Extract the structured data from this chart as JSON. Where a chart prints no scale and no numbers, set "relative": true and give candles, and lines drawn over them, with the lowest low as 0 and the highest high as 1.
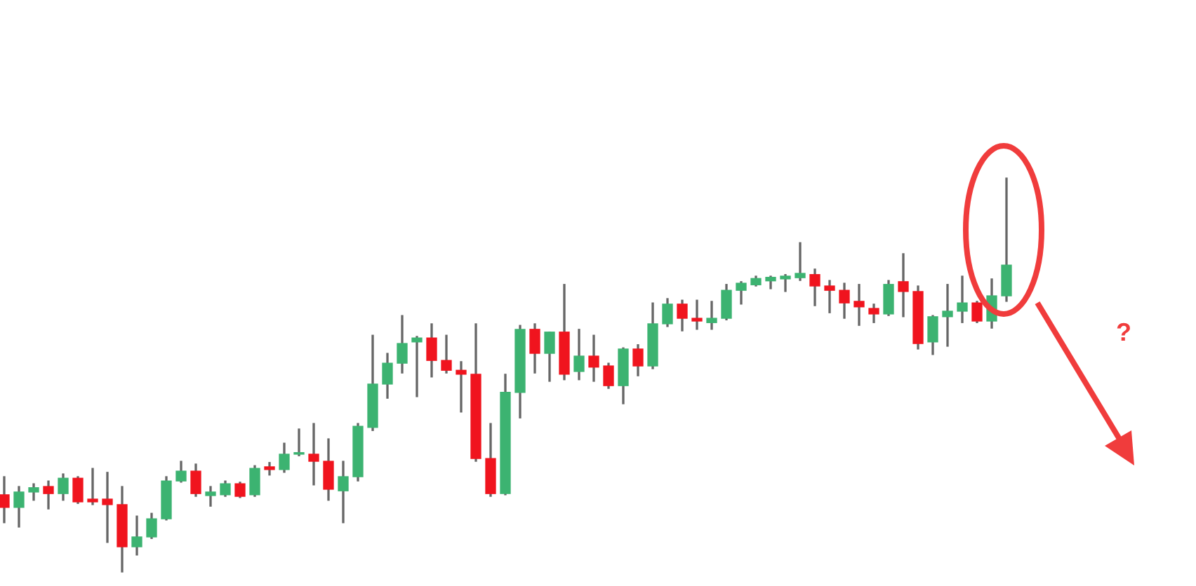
{
  "chart_data": {
    "type": "candlestick",
    "relative": true,
    "categories": [
      null,
      null,
      null,
      null,
      null,
      null,
      null,
      null,
      null,
      null,
      null,
      null,
      null,
      null,
      null,
      null,
      null,
      null,
      null,
      null,
      null,
      null,
      null,
      null,
      null,
      null,
      null,
      null,
      null,
      null,
      null,
      null,
      null,
      null,
      null,
      null,
      null,
      null,
      null,
      null,
      null,
      null,
      null,
      null,
      null,
      null,
      null,
      null,
      null,
      null,
      null,
      null,
      null,
      null,
      null,
      null,
      null,
      null,
      null,
      null,
      null,
      null,
      null,
      null,
      null,
      null,
      null,
      null,
      null
    ],
    "ohlc": [
      [
        0.196,
        0.242,
        0.125,
        0.164
      ],
      [
        0.164,
        0.217,
        0.114,
        0.203
      ],
      [
        0.203,
        0.224,
        0.182,
        0.214
      ],
      [
        0.217,
        0.231,
        0.16,
        0.199
      ],
      [
        0.199,
        0.249,
        0.182,
        0.238
      ],
      [
        0.238,
        0.242,
        0.174,
        0.178
      ],
      [
        0.185,
        0.263,
        0.171,
        0.178
      ],
      [
        0.185,
        0.253,
        0.075,
        0.171
      ],
      [
        0.171,
        0.217,
        0,
        0.064
      ],
      [
        0.064,
        0.142,
        0.043,
        0.089
      ],
      [
        0.089,
        0.149,
        0.085,
        0.135
      ],
      [
        0.135,
        0.242,
        0.132,
        0.231
      ],
      [
        0.231,
        0.281,
        0.228,
        0.256
      ],
      [
        0.256,
        0.274,
        0.192,
        0.199
      ],
      [
        0.194,
        0.217,
        0.167,
        0.203
      ],
      [
        0.196,
        0.231,
        0.192,
        0.224
      ],
      [
        0.224,
        0.228,
        0.189,
        0.192
      ],
      [
        0.196,
        0.27,
        0.192,
        0.263
      ],
      [
        0.267,
        0.278,
        0.246,
        0.26
      ],
      [
        0.26,
        0.327,
        0.253,
        0.299
      ],
      [
        0.299,
        0.363,
        0.295,
        0.303
      ],
      [
        0.299,
        0.377,
        0.221,
        0.281
      ],
      [
        0.281,
        0.338,
        0.182,
        0.21
      ],
      [
        0.206,
        0.281,
        0.125,
        0.242
      ],
      [
        0.242,
        0.377,
        0.231,
        0.37
      ],
      [
        0.367,
        0.601,
        0.359,
        0.477
      ],
      [
        0.477,
        0.555,
        0.441,
        0.53
      ],
      [
        0.53,
        0.651,
        0.505,
        0.58
      ],
      [
        0.584,
        0.598,
        0.445,
        0.594
      ],
      [
        0.594,
        0.63,
        0.495,
        0.537
      ],
      [
        0.537,
        0.601,
        0.505,
        0.512
      ],
      [
        0.512,
        0.534,
        0.406,
        0.502
      ],
      [
        0.502,
        0.63,
        0.281,
        0.288
      ],
      [
        0.288,
        0.377,
        0.192,
        0.199
      ],
      [
        0.199,
        0.502,
        0.196,
        0.456
      ],
      [
        0.456,
        0.626,
        0.391,
        0.616
      ],
      [
        0.616,
        0.63,
        0.505,
        0.555
      ],
      [
        0.555,
        0.609,
        0.484,
        0.609
      ],
      [
        0.609,
        0.73,
        0.488,
        0.502
      ],
      [
        0.509,
        0.616,
        0.488,
        0.548
      ],
      [
        0.548,
        0.601,
        0.484,
        0.52
      ],
      [
        0.523,
        0.53,
        0.466,
        0.473
      ],
      [
        0.473,
        0.569,
        0.427,
        0.566
      ],
      [
        0.566,
        0.577,
        0.498,
        0.523
      ],
      [
        0.523,
        0.683,
        0.516,
        0.63
      ],
      [
        0.63,
        0.694,
        0.623,
        0.68
      ],
      [
        0.68,
        0.69,
        0.612,
        0.644
      ],
      [
        0.644,
        0.69,
        0.616,
        0.637
      ],
      [
        0.633,
        0.687,
        0.616,
        0.644
      ],
      [
        0.644,
        0.73,
        0.64,
        0.715
      ],
      [
        0.715,
        0.737,
        0.68,
        0.733
      ],
      [
        0.729,
        0.751,
        0.726,
        0.745
      ],
      [
        0.739,
        0.751,
        0.719,
        0.748
      ],
      [
        0.744,
        0.755,
        0.712,
        0.751
      ],
      [
        0.747,
        0.836,
        0.74,
        0.758
      ],
      [
        0.755,
        0.769,
        0.676,
        0.726
      ],
      [
        0.726,
        0.74,
        0.658,
        0.715
      ],
      [
        0.715,
        0.733,
        0.644,
        0.683
      ],
      [
        0.687,
        0.73,
        0.626,
        0.673
      ],
      [
        0.669,
        0.68,
        0.633,
        0.655
      ],
      [
        0.655,
        0.74,
        0.651,
        0.73
      ],
      [
        0.737,
        0.808,
        0.648,
        0.712
      ],
      [
        0.712,
        0.726,
        0.566,
        0.58
      ],
      [
        0.584,
        0.651,
        0.552,
        0.648
      ],
      [
        0.648,
        0.73,
        0.573,
        0.662
      ],
      [
        0.662,
        0.751,
        0.633,
        0.683
      ],
      [
        0.683,
        0.687,
        0.633,
        0.637
      ],
      [
        0.637,
        0.744,
        0.619,
        0.701
      ],
      [
        0.701,
        1,
        0.687,
        0.779
      ]
    ],
    "colors": [
      "#f0141e",
      "#3cb371",
      "#3cb371",
      "#f0141e",
      "#3cb371",
      "#f0141e",
      "#f0141e",
      "#f0141e",
      "#f0141e",
      "#3cb371",
      "#3cb371",
      "#3cb371",
      "#3cb371",
      "#f0141e",
      "#3cb371",
      "#3cb371",
      "#f0141e",
      "#3cb371",
      "#f0141e",
      "#3cb371",
      "#3cb371",
      "#f0141e",
      "#f0141e",
      "#3cb371",
      "#3cb371",
      "#3cb371",
      "#3cb371",
      "#3cb371",
      "#3cb371",
      "#f0141e",
      "#f0141e",
      "#f0141e",
      "#f0141e",
      "#f0141e",
      "#3cb371",
      "#3cb371",
      "#f0141e",
      "#3cb371",
      "#f0141e",
      "#3cb371",
      "#f0141e",
      "#f0141e",
      "#3cb371",
      "#f0141e",
      "#3cb371",
      "#3cb371",
      "#f0141e",
      "#f0141e",
      "#3cb371",
      "#3cb371",
      "#3cb371",
      "#3cb371",
      "#3cb371",
      "#3cb371",
      "#3cb371",
      "#f0141e",
      "#f0141e",
      "#f0141e",
      "#f0141e",
      "#f0141e",
      "#3cb371",
      "#f0141e",
      "#f0141e",
      "#3cb371",
      "#3cb371",
      "#3cb371",
      "#f0141e",
      "#3cb371",
      "#3cb371"
    ],
    "annotations": [
      "?"
    ]
  }
}
